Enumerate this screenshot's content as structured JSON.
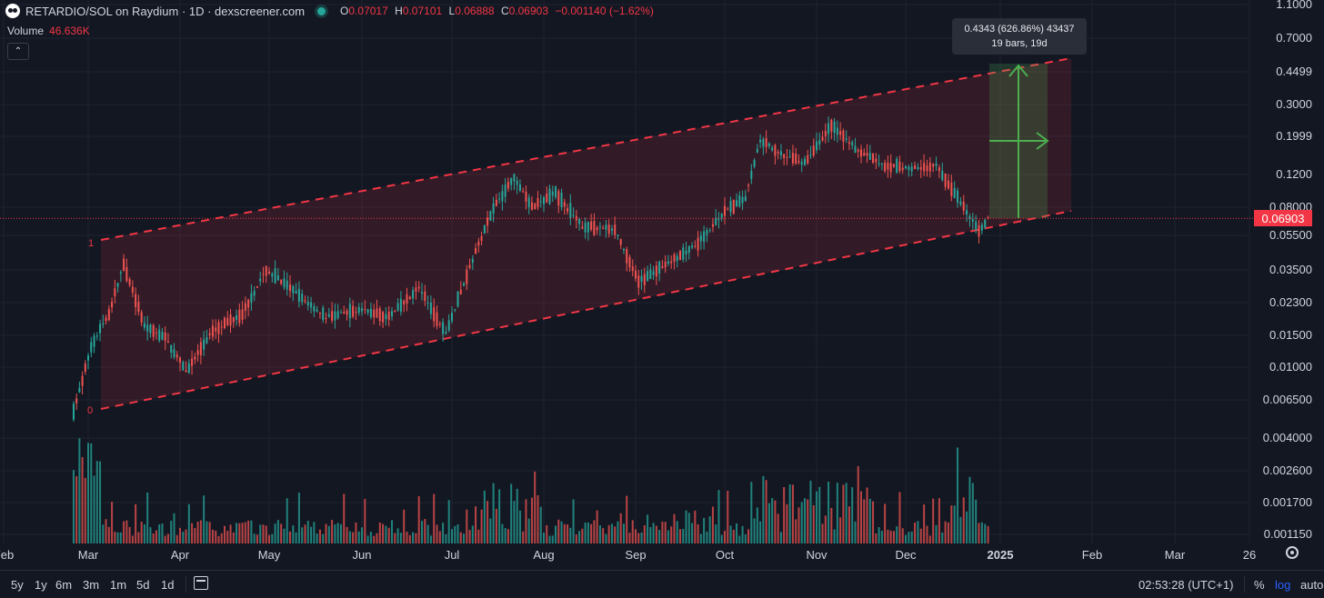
{
  "header": {
    "title": "RETARDIO/SOL on Raydium · 1D · dexscreener.com",
    "ohlc": {
      "o_label": "O",
      "o": "0.07017",
      "h_label": "H",
      "h": "0.07101",
      "l_label": "L",
      "l": "0.06888",
      "c_label": "C",
      "c": "0.06903",
      "change": "−0.001140 (−1.62%)"
    },
    "volume_label": "Volume",
    "volume_value": "46.636K",
    "collapse_icon": "chevron-up-icon"
  },
  "colors": {
    "up": "#26a69a",
    "down": "#ef5350",
    "channel": "#f23645",
    "measure": "#4caf50",
    "background": "#131722"
  },
  "price_tag": "0.06903",
  "measure": {
    "line1": "0.4343 (626.86%) 43437",
    "line2": "19 bars, 19d"
  },
  "channel_labels": {
    "top": "1",
    "bottom": "0"
  },
  "timeframes": [
    "5y",
    "1y",
    "6m",
    "3m",
    "1m",
    "5d",
    "1d"
  ],
  "clock": "02:53:28 (UTC+1)",
  "scale_buttons": {
    "percent": "%",
    "log": "log",
    "auto": "auto"
  },
  "chart_data": {
    "type": "candlestick",
    "log_scale": true,
    "y_ticks": [
      "1.1000",
      "0.7000",
      "0.4499",
      "0.3000",
      "0.1999",
      "0.1200",
      "0.08000",
      "0.05500",
      "0.03500",
      "0.02300",
      "0.01500",
      "0.01000",
      "0.006500",
      "0.004000",
      "0.002600",
      "0.001700",
      "0.001150"
    ],
    "x_ticks": [
      "Feb",
      "Mar",
      "Apr",
      "May",
      "Jun",
      "Jul",
      "Aug",
      "Sep",
      "Oct",
      "Nov",
      "Dec",
      "2025",
      "Feb",
      "Mar",
      "26"
    ],
    "last_price": 0.06903,
    "price_path": [
      [
        "2024-02-25",
        0.0055
      ],
      [
        "2024-03-02",
        0.013
      ],
      [
        "2024-03-08",
        0.02
      ],
      [
        "2024-03-13",
        0.038
      ],
      [
        "2024-03-20",
        0.017
      ],
      [
        "2024-03-27",
        0.0145
      ],
      [
        "2024-04-03",
        0.0095
      ],
      [
        "2024-04-12",
        0.016
      ],
      [
        "2024-04-22",
        0.02
      ],
      [
        "2024-04-30",
        0.035
      ],
      [
        "2024-05-10",
        0.026
      ],
      [
        "2024-05-20",
        0.019
      ],
      [
        "2024-06-01",
        0.021
      ],
      [
        "2024-06-10",
        0.019
      ],
      [
        "2024-06-20",
        0.028
      ],
      [
        "2024-06-29",
        0.0155
      ],
      [
        "2024-07-08",
        0.04
      ],
      [
        "2024-07-15",
        0.08
      ],
      [
        "2024-07-22",
        0.115
      ],
      [
        "2024-07-28",
        0.08
      ],
      [
        "2024-08-05",
        0.095
      ],
      [
        "2024-08-14",
        0.062
      ],
      [
        "2024-08-25",
        0.06
      ],
      [
        "2024-09-02",
        0.03
      ],
      [
        "2024-09-12",
        0.038
      ],
      [
        "2024-09-22",
        0.05
      ],
      [
        "2024-10-01",
        0.075
      ],
      [
        "2024-10-08",
        0.09
      ],
      [
        "2024-10-13",
        0.19
      ],
      [
        "2024-10-21",
        0.155
      ],
      [
        "2024-10-28",
        0.14
      ],
      [
        "2024-11-06",
        0.23
      ],
      [
        "2024-11-15",
        0.165
      ],
      [
        "2024-11-24",
        0.135
      ],
      [
        "2024-12-03",
        0.13
      ],
      [
        "2024-12-11",
        0.135
      ],
      [
        "2024-12-20",
        0.08
      ],
      [
        "2024-12-25",
        0.058
      ],
      [
        "2024-12-28",
        0.06903
      ]
    ]
  }
}
